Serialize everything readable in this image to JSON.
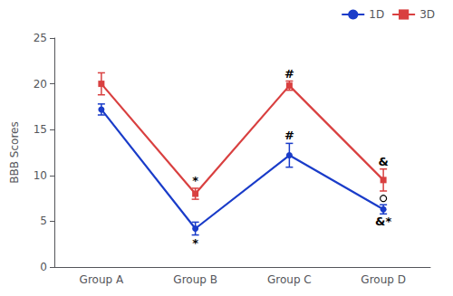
{
  "chart_data": {
    "type": "line",
    "ylabel": "BBB Scores",
    "categories": [
      "Group A",
      "Group B",
      "Group C",
      "Group D"
    ],
    "series": [
      {
        "name": "1D",
        "color": "#1a3cc9",
        "marker": "circle",
        "values": [
          17.2,
          4.2,
          12.2,
          6.3
        ],
        "errors": [
          0.6,
          0.7,
          1.3,
          0.5
        ]
      },
      {
        "name": "3D",
        "color": "#d94040",
        "marker": "square",
        "values": [
          20.0,
          8.0,
          19.8,
          9.5
        ],
        "errors": [
          1.2,
          0.6,
          0.5,
          1.2
        ]
      }
    ],
    "ylim": [
      0,
      25
    ],
    "yticks": [
      0,
      5,
      10,
      15,
      20,
      25
    ],
    "grid": false,
    "legend": "upper right",
    "annotations": [
      {
        "text": "*",
        "category": "Group B",
        "series": "1D",
        "position": "below"
      },
      {
        "text": "*",
        "category": "Group B",
        "series": "3D",
        "position": "above"
      },
      {
        "text": "#",
        "category": "Group C",
        "series": "1D",
        "position": "above"
      },
      {
        "text": "#",
        "category": "Group C",
        "series": "3D",
        "position": "above"
      },
      {
        "text": "&",
        "category": "Group D",
        "series": "3D",
        "position": "above"
      },
      {
        "marker": "circle",
        "category": "Group D",
        "series": "1D",
        "position": "above"
      },
      {
        "text": "&*",
        "category": "Group D",
        "series": "1D",
        "position": "below"
      }
    ]
  }
}
